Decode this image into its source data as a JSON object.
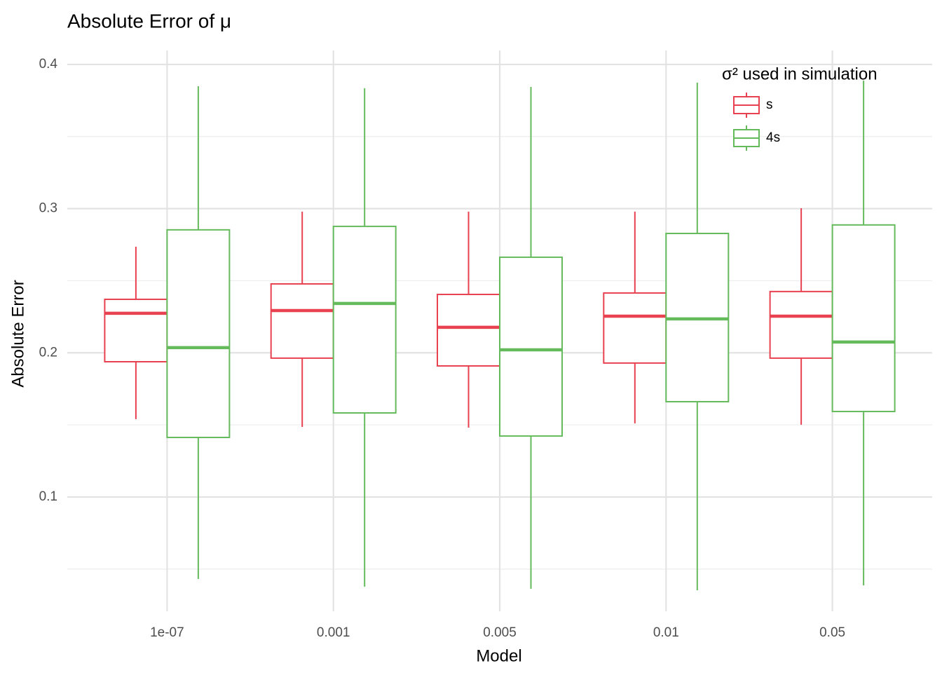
{
  "chart_data": {
    "type": "boxplot",
    "title": "Absolute Error of μ",
    "x_label": "Model",
    "y_label": "Absolute Error",
    "legend_title": "σ² used in simulation",
    "legend_position": "top-right",
    "categories": [
      "1e-07",
      "0.001",
      "0.005",
      "0.01",
      "0.05"
    ],
    "series": [
      {
        "name": "s",
        "color": "#e8414f",
        "min": [
          0.154,
          0.1486,
          0.1481,
          0.1511,
          0.1501
        ],
        "q1": [
          0.1938,
          0.1963,
          0.1909,
          0.1929,
          0.1963
        ],
        "median": [
          0.2274,
          0.2293,
          0.2177,
          0.2254,
          0.2254
        ],
        "q3": [
          0.2371,
          0.2478,
          0.2405,
          0.2415,
          0.2425
        ],
        "max": [
          0.2736,
          0.2979,
          0.2979,
          0.2979,
          0.3003
        ]
      },
      {
        "name": "4s",
        "color": "#65bb5c",
        "min": [
          0.0431,
          0.0378,
          0.0363,
          0.0353,
          0.0387
        ],
        "q1": [
          0.1413,
          0.1583,
          0.1423,
          0.1661,
          0.1593
        ],
        "median": [
          0.2036,
          0.2342,
          0.2021,
          0.2235,
          0.2075
        ],
        "q3": [
          0.2853,
          0.2877,
          0.2663,
          0.2828,
          0.2887
        ],
        "max": [
          0.3849,
          0.3835,
          0.3844,
          0.3874,
          0.3888
        ]
      }
    ],
    "ylim": [
      0.0207,
      0.4097
    ],
    "yticks": [
      0.1,
      0.2,
      0.3,
      0.4
    ],
    "minor_yticks": [
      0.05,
      0.15,
      0.25,
      0.35
    ],
    "grid": true
  }
}
